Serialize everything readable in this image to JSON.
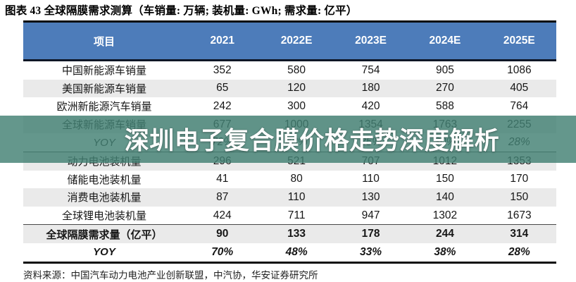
{
  "title": "图表 43 全球隔膜需求测算（车销量: 万辆; 装机量: GWh; 需求量: 亿平）",
  "watermark": "深圳电子复合膜价格走势深度解析",
  "source": "资料来源：中国汽车动力电池产业创新联盟，中汽协，华安证券研究所",
  "table": {
    "header": [
      "项目",
      "2021",
      "2022E",
      "2023E",
      "2024E",
      "2025E"
    ],
    "rows": [
      {
        "label": "中国新能源车销量",
        "values": [
          "352",
          "580",
          "754",
          "905",
          "1086"
        ],
        "shaded": false,
        "bold": false,
        "italic": false,
        "separator_above": false
      },
      {
        "label": "美国新能源车销量",
        "values": [
          "65",
          "120",
          "180",
          "270",
          "405"
        ],
        "shaded": true,
        "bold": false,
        "italic": false,
        "separator_above": false
      },
      {
        "label": "欧洲新能源汽车销量",
        "values": [
          "242",
          "300",
          "420",
          "588",
          "764"
        ],
        "shaded": false,
        "bold": false,
        "italic": false,
        "separator_above": false
      },
      {
        "label": "全球新能源车销量",
        "values": [
          "677",
          "1000",
          "1354",
          "1763",
          "2255"
        ],
        "shaded": true,
        "bold": false,
        "italic": false,
        "separator_above": false
      },
      {
        "label": "YOY",
        "values": [
          "72%",
          "48%",
          "35%",
          "30%",
          "28%"
        ],
        "shaded": false,
        "bold": false,
        "italic": true,
        "separator_above": false
      },
      {
        "label": "动力电池装机量",
        "values": [
          "296",
          "521",
          "707",
          "1012",
          "1353"
        ],
        "shaded": true,
        "bold": false,
        "italic": false,
        "separator_above": true
      },
      {
        "label": "储能电池装机量",
        "values": [
          "41",
          "80",
          "110",
          "150",
          "170"
        ],
        "shaded": false,
        "bold": false,
        "italic": false,
        "separator_above": false
      },
      {
        "label": "消费电池装机量",
        "values": [
          "87",
          "110",
          "130",
          "140",
          "150"
        ],
        "shaded": true,
        "bold": false,
        "italic": false,
        "separator_above": false
      },
      {
        "label": "全球锂电池装机量",
        "values": [
          "424",
          "711",
          "947",
          "1302",
          "1673"
        ],
        "shaded": false,
        "bold": false,
        "italic": false,
        "separator_above": false
      },
      {
        "label": "全球隔膜需求量（亿平）",
        "values": [
          "90",
          "133",
          "178",
          "244",
          "314"
        ],
        "shaded": true,
        "bold": true,
        "italic": false,
        "separator_above": true
      },
      {
        "label": "YOY",
        "values": [
          "70%",
          "48%",
          "33%",
          "38%",
          "28%"
        ],
        "shaded": false,
        "bold": true,
        "italic": true,
        "separator_above": false
      }
    ]
  },
  "colors": {
    "header_bg": "#4d7cba",
    "header_text": "#ffffff",
    "border_dark": "#0e1626",
    "border_black": "#0b0b0b",
    "row_shade": "#eaeaea",
    "overlay_teal": "#428073",
    "watermark_text": "#ffffff",
    "text_main": "#161616"
  }
}
